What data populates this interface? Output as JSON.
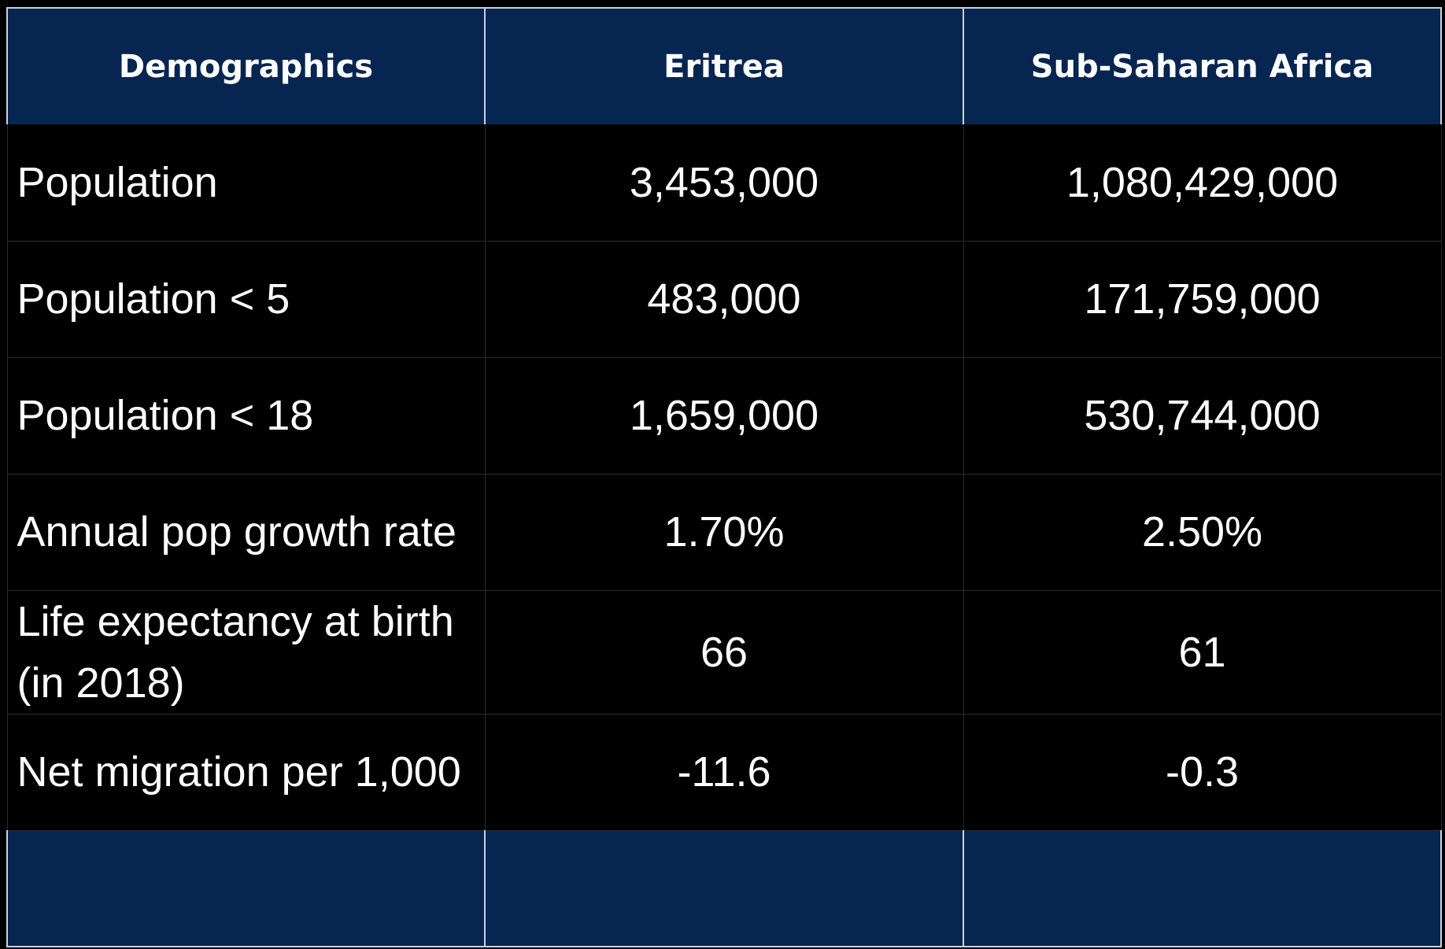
{
  "table": {
    "headers": [
      "Demographics",
      "Eritrea",
      "Sub-Saharan Africa"
    ],
    "rows": [
      {
        "label": "Population",
        "eritrea": "3,453,000",
        "ssa": "1,080,429,000"
      },
      {
        "label": "Population < 5",
        "eritrea": "483,000",
        "ssa": "171,759,000"
      },
      {
        "label": "Population < 18",
        "eritrea": "1,659,000",
        "ssa": "530,744,000"
      },
      {
        "label": "Annual pop growth rate",
        "eritrea": "1.70%",
        "ssa": "2.50%"
      },
      {
        "label": "Life expectancy at birth (in 2018)",
        "eritrea": "66",
        "ssa": "61"
      },
      {
        "label": "Net migration per 1,000",
        "eritrea": "-11.6",
        "ssa": "-0.3"
      }
    ],
    "footer": [
      "",
      "",
      ""
    ]
  },
  "colors": {
    "header_bg": "#062550",
    "body_bg": "#000000",
    "text": "#ffffff"
  }
}
